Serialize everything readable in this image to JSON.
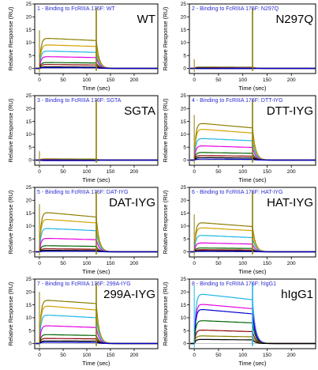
{
  "chart_data": [
    {
      "type": "line",
      "title": "1 - Binding to FcRIIIA 176F: WT",
      "label": "WT",
      "xlabel": "Time (sec)",
      "ylabel": "Relative Response (RU)",
      "xlim": [
        -10,
        250
      ],
      "ylim": [
        -2,
        25
      ],
      "xticks": [
        0,
        50,
        100,
        150,
        200
      ],
      "yticks": [
        0,
        5,
        10,
        15,
        20,
        25
      ],
      "injection_end": 120,
      "series": [
        {
          "color": "#8b7d00",
          "values": [
            11.8,
            10.8
          ]
        },
        {
          "color": "#d4a000",
          "values": [
            9.2,
            8.5
          ]
        },
        {
          "color": "#1fb5e8",
          "values": [
            6.8,
            6.2
          ]
        },
        {
          "color": "#e600e6",
          "values": [
            4.6,
            4.2
          ]
        },
        {
          "color": "#006400",
          "values": [
            2.3,
            2.1
          ]
        },
        {
          "color": "#8b0000",
          "values": [
            1.5,
            1.3
          ]
        },
        {
          "color": "#000000",
          "values": [
            0.6,
            0.5
          ]
        },
        {
          "color": "#0000cc",
          "values": [
            0.3,
            0.2
          ]
        }
      ]
    },
    {
      "type": "line",
      "title": "2 - Binding to FcRIIIA 176F: N297Q",
      "label": "N297Q",
      "xlabel": "Time (sec)",
      "ylabel": "Relative Response (RU)",
      "xlim": [
        -10,
        250
      ],
      "ylim": [
        -2,
        25
      ],
      "xticks": [
        0,
        50,
        100,
        150,
        200
      ],
      "yticks": [
        0,
        5,
        10,
        15,
        20,
        25
      ],
      "injection_end": 120,
      "series": [
        {
          "color": "#8b7d00",
          "values": [
            0.6,
            0.5
          ]
        },
        {
          "color": "#d4a000",
          "values": [
            0.5,
            0.4
          ]
        },
        {
          "color": "#1fb5e8",
          "values": [
            0.4,
            0.3
          ]
        },
        {
          "color": "#e600e6",
          "values": [
            0.3,
            0.2
          ]
        },
        {
          "color": "#006400",
          "values": [
            0.2,
            0.1
          ]
        },
        {
          "color": "#8b0000",
          "values": [
            0.1,
            0.1
          ]
        },
        {
          "color": "#000000",
          "values": [
            0.0,
            0.0
          ]
        },
        {
          "color": "#0000cc",
          "values": [
            -0.1,
            -0.1
          ]
        }
      ]
    },
    {
      "type": "line",
      "title": "3 - Binding to FcRIIIA 176F: SGTA",
      "label": "SGTA",
      "xlabel": "Time (sec)",
      "ylabel": "Relative Response (RU)",
      "xlim": [
        -10,
        250
      ],
      "ylim": [
        -2,
        25
      ],
      "xticks": [
        0,
        50,
        100,
        150,
        200
      ],
      "yticks": [
        0,
        5,
        10,
        15,
        20,
        25
      ],
      "injection_end": 120,
      "series": [
        {
          "color": "#8b7d00",
          "values": [
            0.5,
            0.4
          ]
        },
        {
          "color": "#d4a000",
          "values": [
            0.4,
            0.3
          ]
        },
        {
          "color": "#1fb5e8",
          "values": [
            0.3,
            0.2
          ]
        },
        {
          "color": "#e600e6",
          "values": [
            0.2,
            0.1
          ]
        },
        {
          "color": "#006400",
          "values": [
            0.1,
            0.1
          ]
        },
        {
          "color": "#8b0000",
          "values": [
            0.0,
            0.0
          ]
        },
        {
          "color": "#000000",
          "values": [
            -0.1,
            -0.1
          ]
        },
        {
          "color": "#0000cc",
          "values": [
            -0.2,
            -0.2
          ]
        }
      ]
    },
    {
      "type": "line",
      "title": "4 - Binding to FcRIIIA 176F: DTT-IYG",
      "label": "DTT-IYG",
      "xlabel": "Time (sec)",
      "ylabel": "Relative Response (RU)",
      "xlim": [
        -10,
        250
      ],
      "ylim": [
        -2,
        25
      ],
      "xticks": [
        0,
        50,
        100,
        150,
        200
      ],
      "yticks": [
        0,
        5,
        10,
        15,
        20,
        25
      ],
      "injection_end": 120,
      "series": [
        {
          "color": "#8b7d00",
          "values": [
            14.5,
            12.5
          ]
        },
        {
          "color": "#d4a000",
          "values": [
            12.2,
            10.5
          ]
        },
        {
          "color": "#1fb5e8",
          "values": [
            8.5,
            7.5
          ]
        },
        {
          "color": "#e600e6",
          "values": [
            5.6,
            4.9
          ]
        },
        {
          "color": "#006400",
          "values": [
            3.0,
            2.6
          ]
        },
        {
          "color": "#8b0000",
          "values": [
            1.8,
            1.5
          ]
        },
        {
          "color": "#000000",
          "values": [
            1.0,
            0.8
          ]
        },
        {
          "color": "#0000cc",
          "values": [
            0.4,
            0.3
          ]
        }
      ]
    },
    {
      "type": "line",
      "title": "5 - Binding to FcRIIIA 176F: DAT-IYG",
      "label": "DAT-IYG",
      "xlabel": "Time (sec)",
      "ylabel": "Relative Response (RU)",
      "xlim": [
        -10,
        250
      ],
      "ylim": [
        -2,
        25
      ],
      "xticks": [
        0,
        50,
        100,
        150,
        200
      ],
      "yticks": [
        0,
        5,
        10,
        15,
        20,
        25
      ],
      "injection_end": 120,
      "series": [
        {
          "color": "#8b7d00",
          "values": [
            15.5,
            13.5
          ]
        },
        {
          "color": "#d4a000",
          "values": [
            12.8,
            11.2
          ]
        },
        {
          "color": "#1fb5e8",
          "values": [
            9.2,
            8.2
          ]
        },
        {
          "color": "#e600e6",
          "values": [
            5.3,
            4.7
          ]
        },
        {
          "color": "#006400",
          "values": [
            2.4,
            2.1
          ]
        },
        {
          "color": "#8b0000",
          "values": [
            1.2,
            1.0
          ]
        },
        {
          "color": "#000000",
          "values": [
            0.6,
            0.5
          ]
        },
        {
          "color": "#0000cc",
          "values": [
            0.2,
            0.2
          ]
        }
      ]
    },
    {
      "type": "line",
      "title": "6 - Binding to FcRIIIA 176F: HAT-IYG",
      "label": "HAT-IYG",
      "xlabel": "Time (sec)",
      "ylabel": "Relative Response (RU)",
      "xlim": [
        -10,
        250
      ],
      "ylim": [
        -2,
        25
      ],
      "xticks": [
        0,
        50,
        100,
        150,
        200
      ],
      "yticks": [
        0,
        5,
        10,
        15,
        20,
        25
      ],
      "injection_end": 120,
      "series": [
        {
          "color": "#8b7d00",
          "values": [
            11.5,
            9.8
          ]
        },
        {
          "color": "#d4a000",
          "values": [
            9.5,
            8.2
          ]
        },
        {
          "color": "#1fb5e8",
          "values": [
            6.5,
            5.5
          ]
        },
        {
          "color": "#e600e6",
          "values": [
            3.5,
            3.0
          ]
        },
        {
          "color": "#006400",
          "values": [
            1.5,
            1.3
          ]
        },
        {
          "color": "#8b0000",
          "values": [
            0.8,
            0.7
          ]
        },
        {
          "color": "#000000",
          "values": [
            0.4,
            0.3
          ]
        },
        {
          "color": "#0000cc",
          "values": [
            0.2,
            0.1
          ]
        }
      ]
    },
    {
      "type": "line",
      "title": "7 - Binding to FcRIIIA 176F: 299A-IYG",
      "label": "299A-IYG",
      "xlabel": "Time (sec)",
      "ylabel": "Relative Response (RU)",
      "xlim": [
        -10,
        250
      ],
      "ylim": [
        -2,
        25
      ],
      "xticks": [
        0,
        50,
        100,
        150,
        200
      ],
      "yticks": [
        0,
        5,
        10,
        15,
        20,
        25
      ],
      "injection_end": 120,
      "series": [
        {
          "color": "#8b7d00",
          "values": [
            17.0,
            15.5
          ]
        },
        {
          "color": "#d4a000",
          "values": [
            14.8,
            13.0
          ]
        },
        {
          "color": "#1fb5e8",
          "values": [
            11.2,
            10.0
          ]
        },
        {
          "color": "#e600e6",
          "values": [
            7.0,
            6.2
          ]
        },
        {
          "color": "#006400",
          "values": [
            3.5,
            3.1
          ]
        },
        {
          "color": "#8b0000",
          "values": [
            2.0,
            1.8
          ]
        },
        {
          "color": "#000000",
          "values": [
            1.0,
            0.9
          ]
        },
        {
          "color": "#0000cc",
          "values": [
            0.5,
            0.4
          ]
        }
      ]
    },
    {
      "type": "line",
      "title": "8 - Binding to FcRIIIA 176F: hIgG1",
      "label": "hIgG1",
      "xlabel": "Time (sec)",
      "ylabel": "Relative Response (RU)",
      "xlim": [
        -10,
        250
      ],
      "ylim": [
        -2,
        25
      ],
      "xticks": [
        0,
        50,
        100,
        150,
        200
      ],
      "yticks": [
        0,
        5,
        10,
        15,
        20,
        25
      ],
      "injection_end": 120,
      "series": [
        {
          "color": "#1fb5e8",
          "values": [
            19.5,
            17.0
          ]
        },
        {
          "color": "#e600e6",
          "values": [
            15.5,
            13.5
          ]
        },
        {
          "color": "#0000cc",
          "values": [
            13.5,
            11.5
          ]
        },
        {
          "color": "#006400",
          "values": [
            9.0,
            8.0
          ]
        },
        {
          "color": "#8b0000",
          "values": [
            5.3,
            4.6
          ]
        },
        {
          "color": "#8b7d00",
          "values": [
            3.0,
            2.6
          ]
        },
        {
          "color": "#000000",
          "values": [
            1.6,
            1.4
          ]
        }
      ]
    }
  ]
}
